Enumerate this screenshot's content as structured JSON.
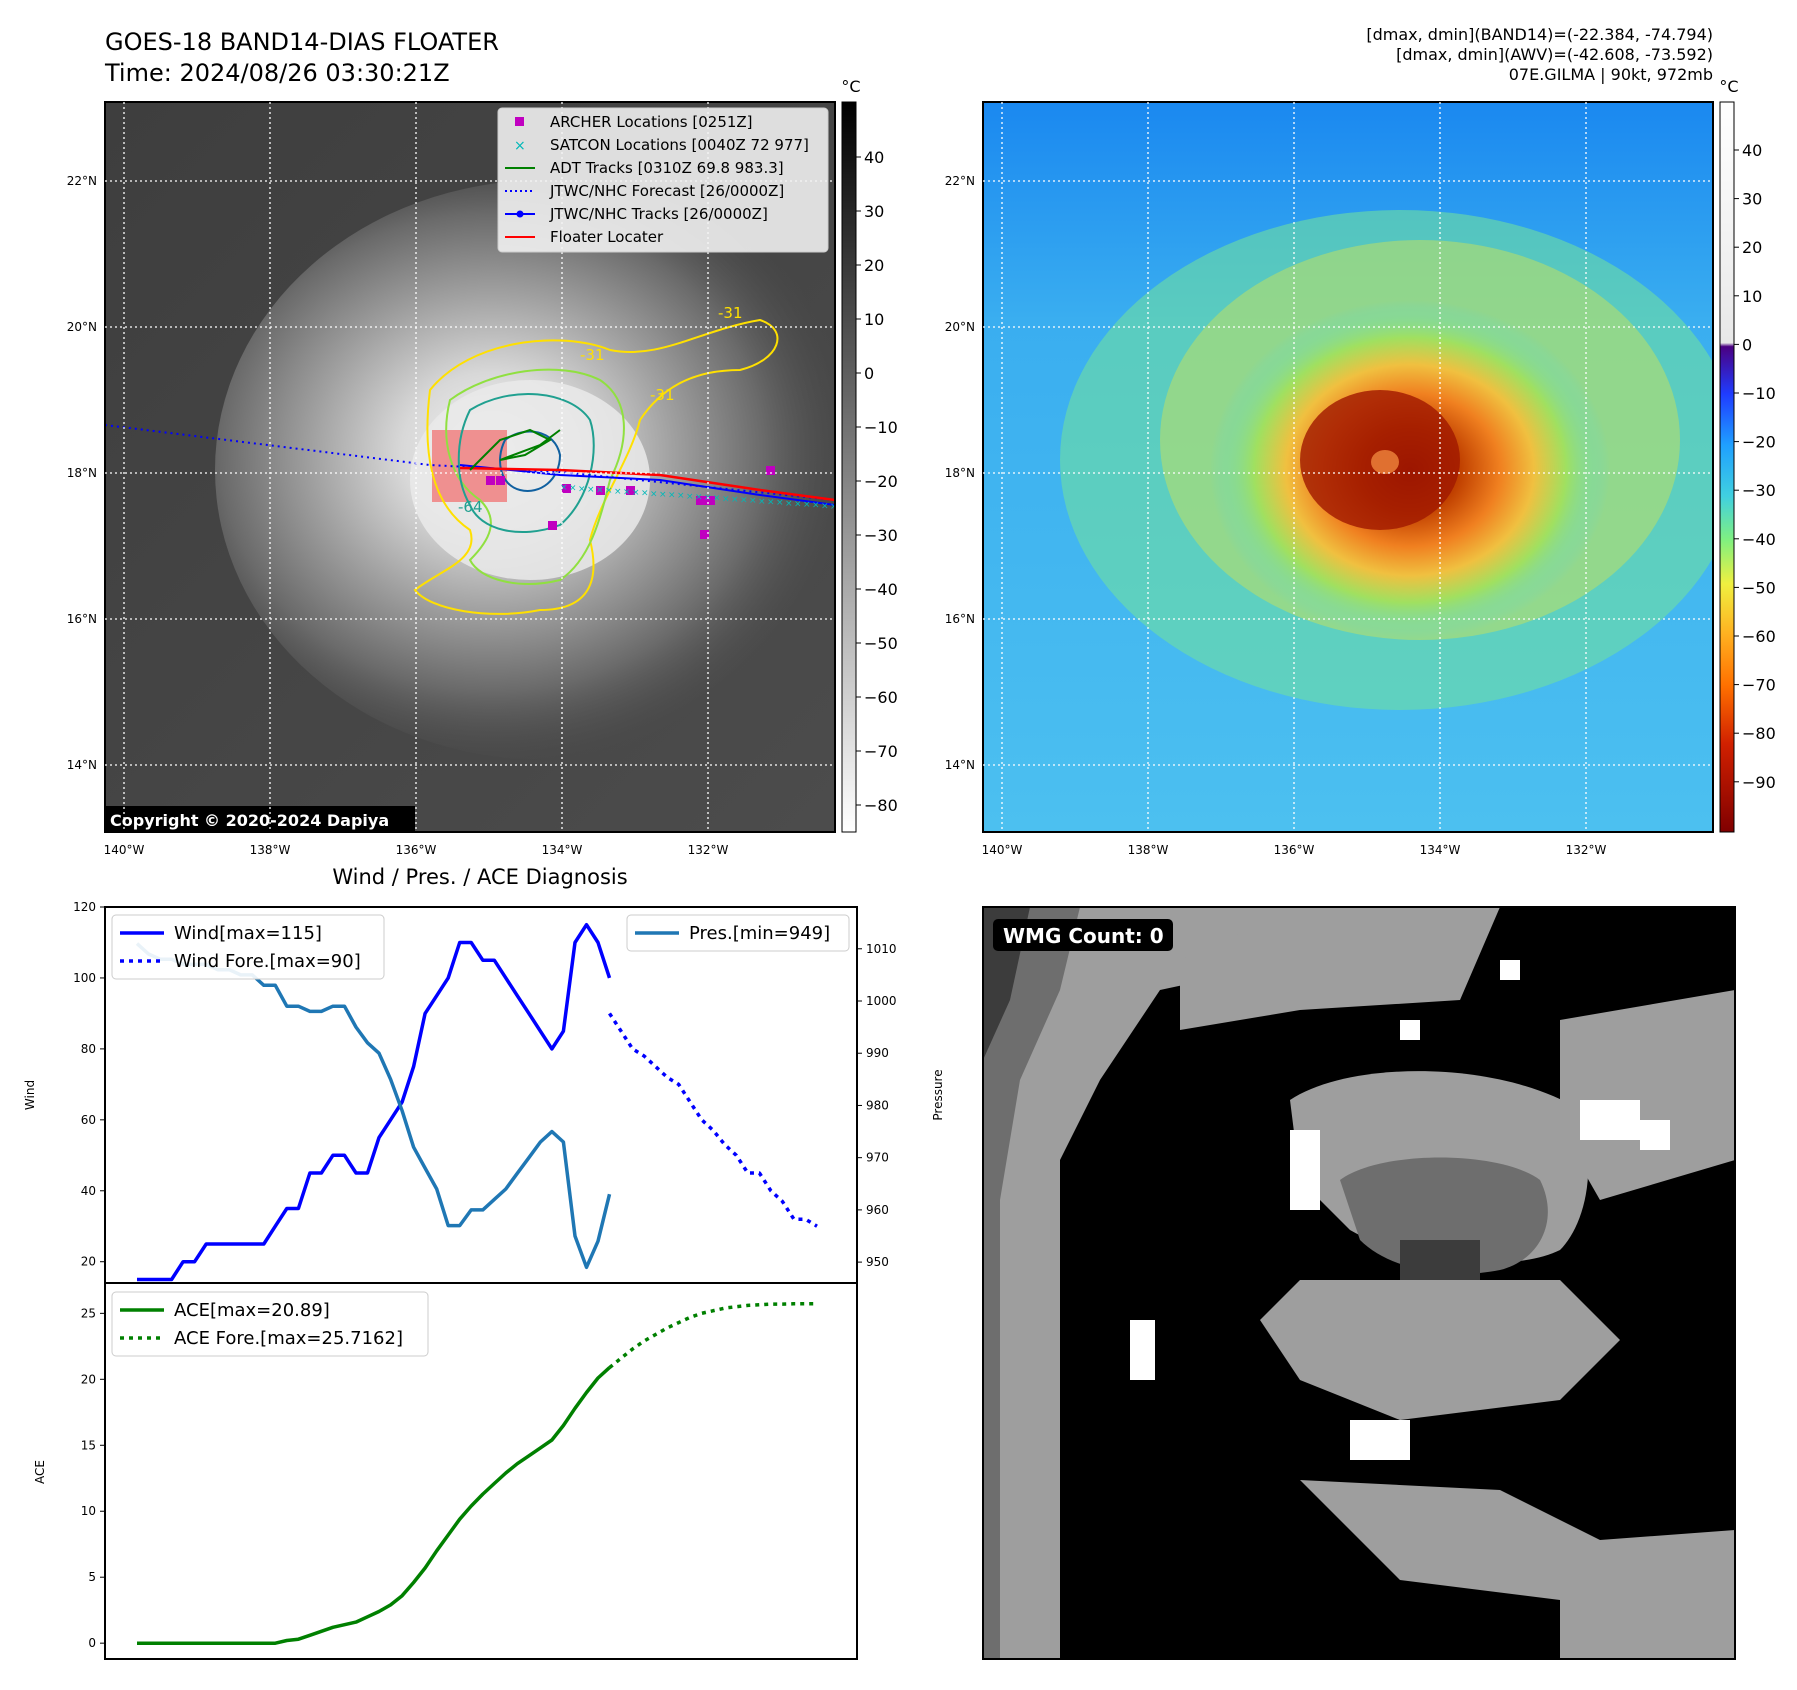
{
  "header": {
    "title_line1": "GOES-18 BAND14-DIAS FLOATER",
    "title_line2": "Time: 2024/08/26 03:30:21Z",
    "info_line1": "[dmax, dmin](BAND14)=(-22.384, -74.794)",
    "info_line2": "[dmax, dmin](AWV)=(-42.608, -73.592)",
    "info_line3": "07E.GILMA | 90kt, 972mb"
  },
  "maps": {
    "lat_labels": [
      "22°N",
      "20°N",
      "18°N",
      "16°N",
      "14°N"
    ],
    "lon_labels": [
      "140°W",
      "138°W",
      "136°W",
      "134°W",
      "132°W"
    ],
    "copyright": "Copyright © 2020-2024 Dapiya",
    "contour_labels": [
      "-31",
      "-31",
      "-31",
      "-64"
    ],
    "legend": [
      {
        "label": "ARCHER Locations [0251Z]",
        "color": "#c000c0"
      },
      {
        "label": "SATCON Locations [0040Z 72 977]",
        "color": "#00b8b8"
      },
      {
        "label": "ADT Tracks [0310Z 69.8 983.3]",
        "color": "#008000"
      },
      {
        "label": "JTWC/NHC Forecast [26/0000Z]",
        "color": "#0000ff"
      },
      {
        "label": "JTWC/NHC Tracks [26/0000Z]",
        "color": "#0000ff"
      },
      {
        "label": "Floater Locater",
        "color": "#ff0000"
      }
    ]
  },
  "colorbars": {
    "unit": "°C",
    "gray_ticks": [
      "40",
      "30",
      "20",
      "10",
      "0",
      "−10",
      "−20",
      "−30",
      "−40",
      "−50",
      "−60",
      "−70",
      "−80"
    ],
    "color_ticks": [
      "40",
      "30",
      "20",
      "10",
      "0",
      "−10",
      "−20",
      "−30",
      "−40",
      "−50",
      "−60",
      "−70",
      "−80",
      "−90"
    ]
  },
  "wmg": {
    "label": "WMG Count: 0"
  },
  "chart_data": [
    {
      "type": "line",
      "title": "Wind / Pres. / ACE Diagnosis",
      "ylabel": "Wind",
      "y2label": "Pressure",
      "ylim": [
        14,
        120
      ],
      "y2lim": [
        946,
        1018
      ],
      "yticks": [
        20,
        40,
        60,
        80,
        100,
        120
      ],
      "y2ticks": [
        950,
        960,
        970,
        980,
        990,
        1000,
        1010
      ],
      "series": [
        {
          "name": "Wind[max=115]",
          "axis": "left",
          "color": "#0000ff",
          "style": "solid",
          "x": [
            0,
            1,
            2,
            3,
            4,
            5,
            6,
            7,
            8,
            9,
            10,
            11,
            12,
            13,
            14,
            15,
            16,
            17,
            18,
            19,
            20,
            21,
            22,
            23,
            24,
            25,
            26,
            27,
            28,
            29,
            30,
            31,
            32,
            33,
            34,
            35,
            36,
            37,
            38,
            39,
            40,
            41
          ],
          "values": [
            15,
            15,
            15,
            15,
            20,
            20,
            25,
            25,
            25,
            25,
            25,
            25,
            30,
            35,
            35,
            45,
            45,
            50,
            50,
            45,
            45,
            55,
            60,
            65,
            75,
            90,
            95,
            100,
            110,
            110,
            105,
            105,
            100,
            95,
            90,
            85,
            80,
            85,
            110,
            115,
            110,
            100
          ]
        },
        {
          "name": "Wind Fore.[max=90]",
          "axis": "left",
          "color": "#0000ff",
          "style": "dotted",
          "x": [
            41,
            42,
            43,
            44,
            45,
            46,
            47,
            48,
            49,
            50,
            51,
            52,
            53,
            54,
            55,
            56,
            57,
            58,
            59
          ],
          "values": [
            90,
            85,
            80,
            78,
            75,
            72,
            70,
            65,
            60,
            57,
            53,
            50,
            45,
            45,
            40,
            37,
            32,
            32,
            30
          ]
        },
        {
          "name": "Pres.[min=949]",
          "axis": "right",
          "color": "#1f77b4",
          "style": "solid",
          "x": [
            0,
            1,
            2,
            3,
            4,
            5,
            6,
            7,
            8,
            9,
            10,
            11,
            12,
            13,
            14,
            15,
            16,
            17,
            18,
            19,
            20,
            21,
            22,
            23,
            24,
            25,
            26,
            27,
            28,
            29,
            30,
            31,
            32,
            33,
            34,
            35,
            36,
            37,
            38,
            39,
            40,
            41
          ],
          "values": [
            1011,
            1009,
            1008,
            1008,
            1007,
            1007,
            1007,
            1006,
            1006,
            1005,
            1005,
            1003,
            1003,
            999,
            999,
            998,
            998,
            999,
            999,
            995,
            992,
            990,
            985,
            979,
            972,
            968,
            964,
            957,
            957,
            960,
            960,
            962,
            964,
            967,
            970,
            973,
            975,
            973,
            955,
            949,
            954,
            963
          ]
        }
      ]
    },
    {
      "type": "line",
      "ylabel": "ACE",
      "ylim": [
        -1.2,
        27.3
      ],
      "yticks": [
        0,
        5,
        10,
        15,
        20,
        25
      ],
      "series": [
        {
          "name": "ACE[max=20.89]",
          "color": "#008000",
          "style": "solid",
          "x": [
            0,
            1,
            2,
            3,
            4,
            5,
            6,
            7,
            8,
            9,
            10,
            11,
            12,
            13,
            14,
            15,
            16,
            17,
            18,
            19,
            20,
            21,
            22,
            23,
            24,
            25,
            26,
            27,
            28,
            29,
            30,
            31,
            32,
            33,
            34,
            35,
            36,
            37,
            38,
            39,
            40,
            41
          ],
          "values": [
            0,
            0,
            0,
            0,
            0,
            0,
            0,
            0,
            0,
            0,
            0,
            0,
            0,
            0.2,
            0.3,
            0.6,
            0.9,
            1.2,
            1.4,
            1.6,
            2.0,
            2.4,
            2.9,
            3.6,
            4.6,
            5.7,
            7.0,
            8.2,
            9.4,
            10.4,
            11.3,
            12.1,
            12.9,
            13.6,
            14.2,
            14.8,
            15.4,
            16.5,
            17.8,
            19.0,
            20.1,
            20.89
          ]
        },
        {
          "name": "ACE Fore.[max=25.7162]",
          "color": "#008000",
          "style": "dotted",
          "x": [
            41,
            42,
            43,
            44,
            45,
            46,
            47,
            48,
            49,
            50,
            51,
            52,
            53,
            54,
            55,
            56,
            57,
            58,
            59
          ],
          "values": [
            20.89,
            21.6,
            22.3,
            22.9,
            23.4,
            23.9,
            24.3,
            24.7,
            25.0,
            25.2,
            25.4,
            25.5,
            25.6,
            25.65,
            25.7,
            25.7,
            25.72,
            25.72,
            25.72
          ]
        }
      ]
    }
  ]
}
